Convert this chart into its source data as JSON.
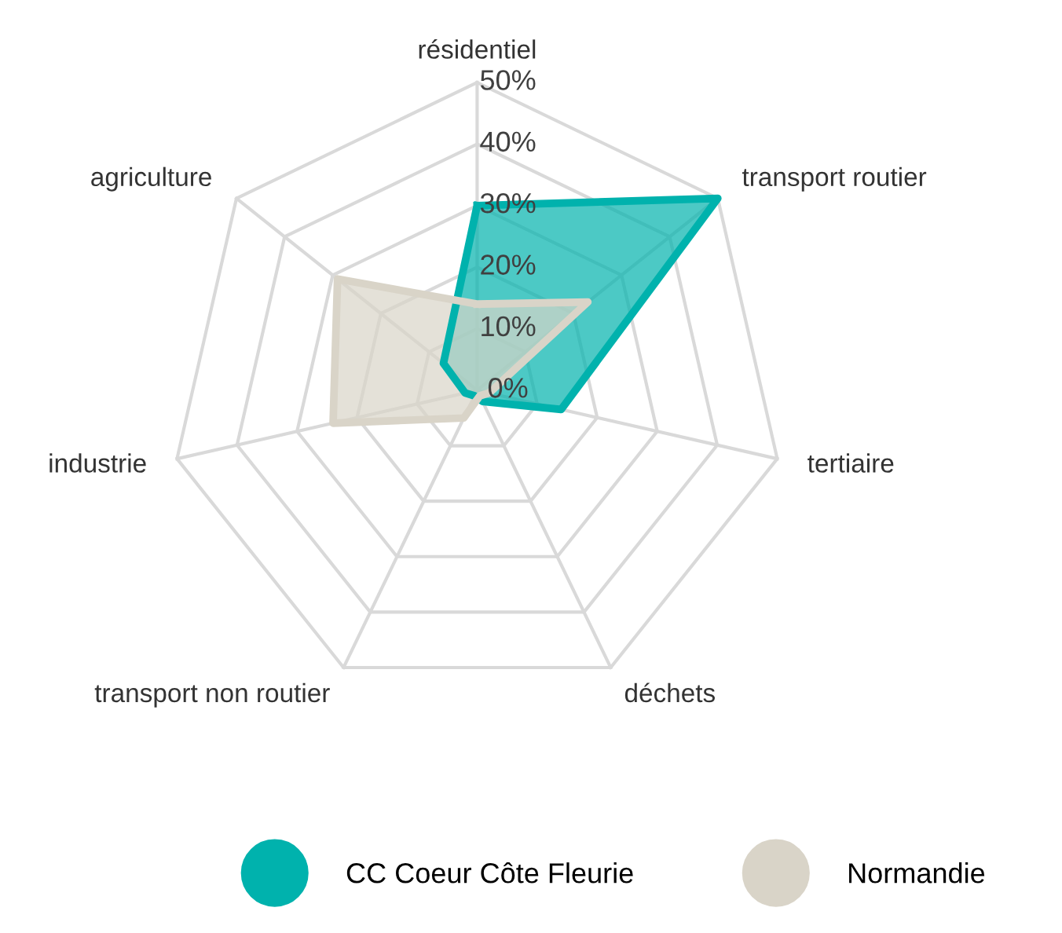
{
  "chart_data": {
    "type": "radar",
    "categories": [
      "résidentiel",
      "transport routier",
      "tertiaire",
      "déchets",
      "transport non routier",
      "industrie",
      "agriculture"
    ],
    "series": [
      {
        "name": "CC Coeur Côte Fleurie",
        "color": "#00b2ad",
        "values": [
          30,
          50,
          14,
          2,
          1,
          2,
          7
        ]
      },
      {
        "name": "Normandie",
        "color": "#d9d4c8",
        "values": [
          14,
          23,
          2,
          1,
          5,
          24,
          29
        ]
      }
    ],
    "ylim": [
      0,
      50
    ],
    "yticks": [
      {
        "value": 0,
        "label": "0%"
      },
      {
        "value": 10,
        "label": "10%"
      },
      {
        "value": 20,
        "label": "20%"
      },
      {
        "value": 30,
        "label": "30%"
      },
      {
        "value": 40,
        "label": "40%"
      },
      {
        "value": 50,
        "label": "50%"
      }
    ],
    "grid": true,
    "legend": "bottom"
  }
}
